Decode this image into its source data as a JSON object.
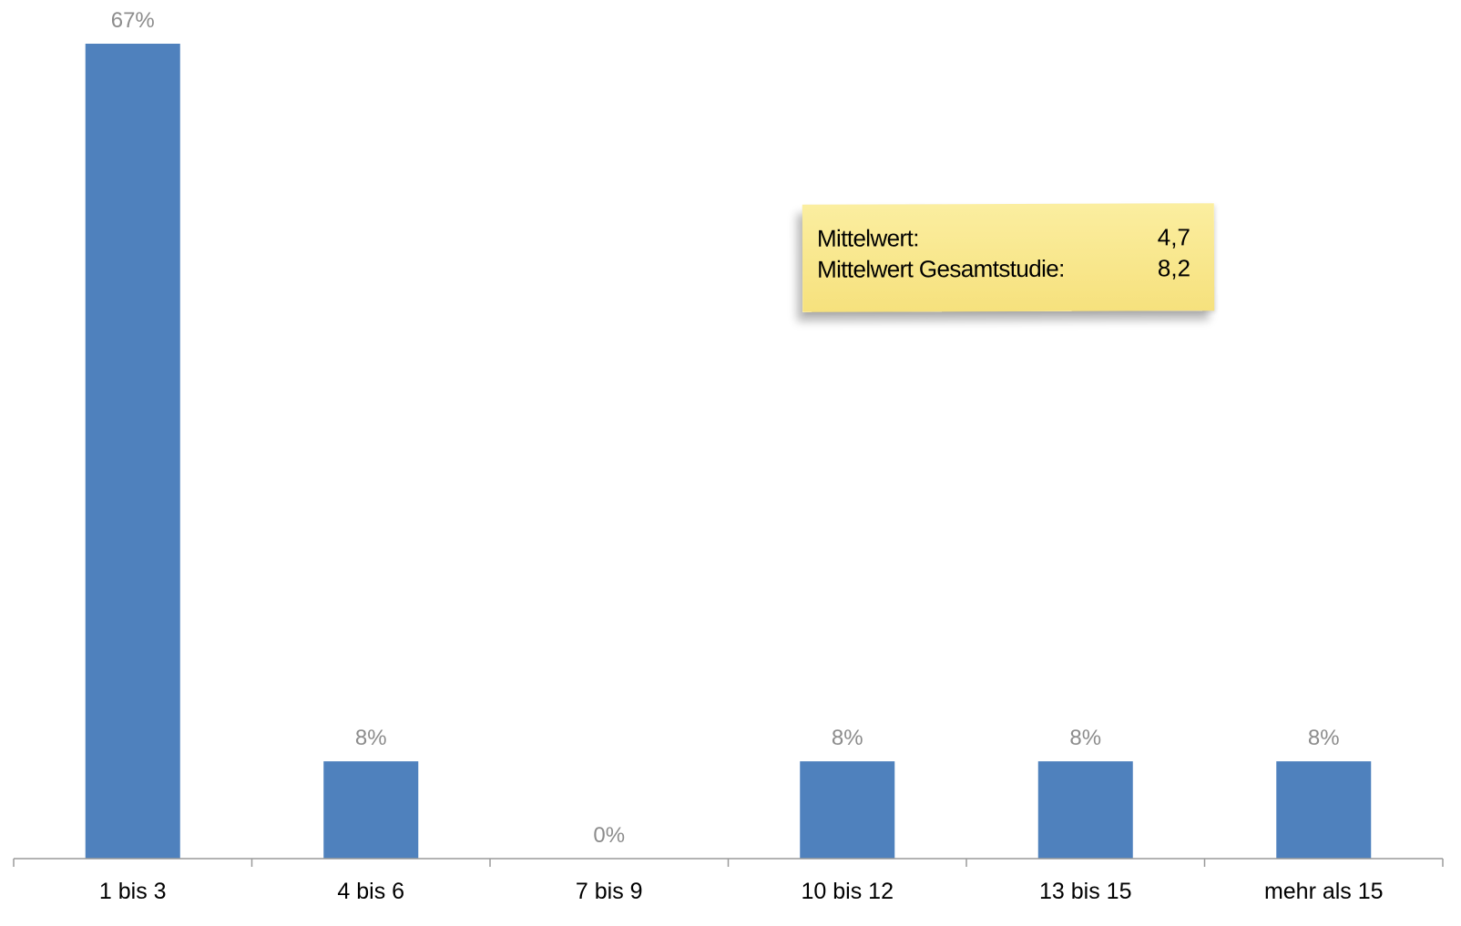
{
  "chart_data": {
    "type": "bar",
    "categories": [
      "1 bis 3",
      "4 bis 6",
      "7 bis 9",
      "10 bis 12",
      "13 bis 15",
      "mehr als 15"
    ],
    "values": [
      67,
      8,
      0,
      8,
      8,
      8
    ],
    "value_labels": [
      "67%",
      "8%",
      "0%",
      "8%",
      "8%",
      "8%"
    ],
    "unit": "%",
    "ylim": [
      0,
      67
    ],
    "grid": false,
    "legend": "none",
    "colors": {
      "bar": "#4f81bd",
      "value_label": "#8c8c8c",
      "axis": "#9a9a9a",
      "tick_label": "#000000"
    }
  },
  "note": {
    "rows": [
      {
        "label": "Mittelwert:",
        "value": "4,7"
      },
      {
        "label": "Mittelwert Gesamtstudie:",
        "value": "8,2"
      }
    ]
  }
}
